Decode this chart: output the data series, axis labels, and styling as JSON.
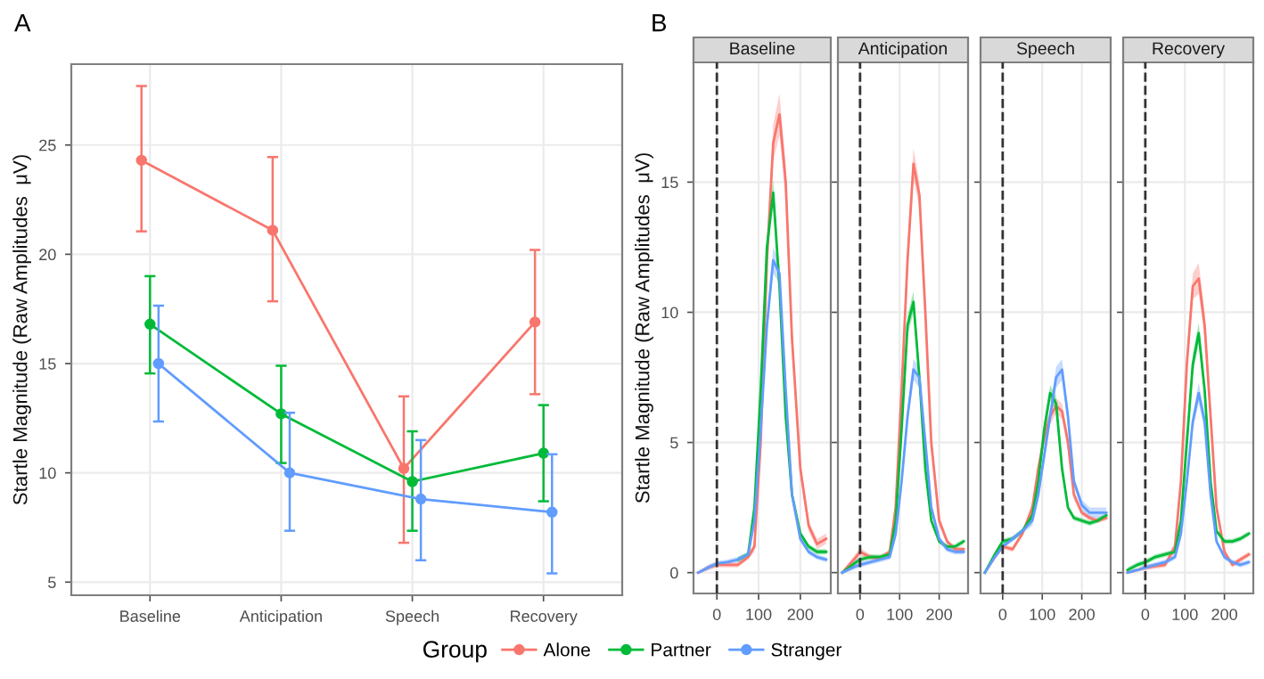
{
  "chart_data": [
    {
      "type": "line",
      "title": "A",
      "ylabel": "Startle Magnitude (Raw Amplitudes  μV)",
      "categories": [
        "Baseline",
        "Anticipation",
        "Speech",
        "Recovery"
      ],
      "ylim": [
        4.4,
        28.7
      ],
      "yticks": [
        5,
        10,
        15,
        20,
        25
      ],
      "grid": true,
      "marker": "circle",
      "legend": "bottom",
      "legend_title": "Group",
      "series": [
        {
          "name": "Alone",
          "color": "#f8766d",
          "values": [
            24.3,
            21.1,
            10.2,
            16.9
          ],
          "errors": [
            [
              21.05,
              27.7
            ],
            [
              17.85,
              24.45
            ],
            [
              6.8,
              13.5
            ],
            [
              13.6,
              20.2
            ]
          ]
        },
        {
          "name": "Partner",
          "color": "#00ba38",
          "values": [
            16.8,
            12.7,
            9.6,
            10.9
          ],
          "errors": [
            [
              14.55,
              19.0
            ],
            [
              10.45,
              14.9
            ],
            [
              7.35,
              11.9
            ],
            [
              8.7,
              13.1
            ]
          ]
        },
        {
          "name": "Stranger",
          "color": "#619cff",
          "values": [
            15.0,
            10.0,
            8.8,
            8.2
          ],
          "errors": [
            [
              12.35,
              17.65
            ],
            [
              7.35,
              12.75
            ],
            [
              6.0,
              11.5
            ],
            [
              5.4,
              10.85
            ]
          ]
        }
      ]
    },
    {
      "type": "line",
      "title": "Baseline",
      "annotations": [
        "B"
      ],
      "ylabel": "Startle Magnitude (Raw Amplitudes  μV)",
      "xlim": [
        -56,
        273
      ],
      "xticks": [
        0,
        100,
        200
      ],
      "ylim": [
        -0.8,
        19.6
      ],
      "yticks": [
        0,
        5,
        10,
        15
      ],
      "grid": true,
      "ref_lines": [
        {
          "axis": "x",
          "value": 0,
          "line_style": "dashed",
          "color": "#333333"
        }
      ],
      "series": [
        {
          "name": "Alone",
          "color": "#f8766d",
          "x": [
            -45,
            -20,
            0,
            25,
            50,
            75,
            90,
            105,
            120,
            135,
            150,
            165,
            180,
            200,
            220,
            240,
            262
          ],
          "values": [
            0,
            0.2,
            0.3,
            0.3,
            0.3,
            0.6,
            1.0,
            5,
            12,
            16.5,
            17.6,
            15,
            9,
            4,
            1.8,
            1.1,
            1.3
          ],
          "lower": [
            -0.05,
            0.1,
            0.2,
            0.2,
            0.2,
            0.5,
            0.8,
            4.6,
            11.4,
            15.8,
            16.8,
            14.3,
            8.5,
            3.7,
            1.6,
            0.9,
            1.1
          ],
          "upper": [
            0.05,
            0.3,
            0.4,
            0.4,
            0.4,
            0.7,
            1.2,
            5.4,
            12.6,
            17.2,
            18.4,
            15.7,
            9.5,
            4.3,
            2.0,
            1.3,
            1.5
          ]
        },
        {
          "name": "Partner",
          "color": "#00ba38",
          "x": [
            50,
            75,
            90,
            105,
            120,
            135,
            150,
            165,
            180,
            200,
            220,
            240,
            262
          ],
          "values": [
            0.5,
            0.7,
            2.5,
            7,
            12.5,
            14.6,
            11,
            6,
            3,
            1.5,
            1.0,
            0.8,
            0.8
          ],
          "lower": [
            0.4,
            0.6,
            2.3,
            6.7,
            12.1,
            14.1,
            10.6,
            5.7,
            2.8,
            1.4,
            0.9,
            0.7,
            0.7
          ],
          "upper": [
            0.6,
            0.8,
            2.7,
            7.3,
            12.9,
            15.1,
            11.4,
            6.3,
            3.2,
            1.6,
            1.1,
            0.9,
            0.9
          ]
        },
        {
          "name": "Stranger",
          "color": "#619cff",
          "x": [
            -45,
            -20,
            0,
            25,
            50,
            75,
            90,
            105,
            120,
            135,
            150,
            165,
            180,
            200,
            220,
            240,
            262
          ],
          "values": [
            0,
            0.2,
            0.35,
            0.4,
            0.5,
            0.7,
            2,
            5.5,
            9.5,
            12,
            11.5,
            7,
            3,
            1.3,
            0.8,
            0.6,
            0.5
          ],
          "lower": [
            -0.05,
            0.1,
            0.25,
            0.3,
            0.4,
            0.6,
            1.8,
            5.2,
            9.1,
            11.5,
            11.1,
            6.7,
            2.8,
            1.2,
            0.7,
            0.5,
            0.4
          ],
          "upper": [
            0.05,
            0.3,
            0.45,
            0.5,
            0.6,
            0.8,
            2.2,
            5.8,
            9.9,
            12.5,
            11.9,
            7.3,
            3.2,
            1.4,
            0.9,
            0.7,
            0.6
          ]
        }
      ]
    },
    {
      "type": "line",
      "title": "Anticipation",
      "xlim": [
        -56,
        273
      ],
      "xticks": [
        0,
        100,
        200
      ],
      "ylim": [
        -0.8,
        19.6
      ],
      "yticks": [
        0,
        5,
        10,
        15
      ],
      "grid": true,
      "tick_labels": "x",
      "ref_lines": [
        {
          "axis": "x",
          "value": 0,
          "line_style": "dashed",
          "color": "#333333"
        }
      ],
      "series": [
        {
          "name": "Alone",
          "color": "#f8766d",
          "x": [
            -45,
            -10,
            0,
            25,
            50,
            75,
            90,
            105,
            120,
            135,
            150,
            165,
            180,
            200,
            220,
            240,
            262
          ],
          "values": [
            0,
            0.6,
            0.8,
            0.6,
            0.55,
            0.8,
            2.5,
            7,
            12,
            15.7,
            14.5,
            10,
            5,
            2,
            1.2,
            0.9,
            0.9
          ],
          "lower": [
            -0.05,
            0.45,
            0.65,
            0.5,
            0.45,
            0.7,
            2.3,
            6.6,
            11.5,
            15.1,
            14.0,
            9.6,
            4.7,
            1.8,
            1.1,
            0.8,
            0.8
          ],
          "upper": [
            0.05,
            0.75,
            0.95,
            0.7,
            0.65,
            0.9,
            2.7,
            7.4,
            12.5,
            16.3,
            15.0,
            10.4,
            5.3,
            2.2,
            1.3,
            1.0,
            1.0
          ]
        },
        {
          "name": "Partner",
          "color": "#00ba38",
          "x": [
            -45,
            -10,
            0,
            25,
            50,
            75,
            90,
            105,
            120,
            135,
            150,
            165,
            180,
            200,
            220,
            240,
            262
          ],
          "values": [
            0,
            0.4,
            0.5,
            0.6,
            0.6,
            0.7,
            2,
            5.5,
            9.5,
            10.4,
            7.5,
            4,
            2,
            1.2,
            1.0,
            1.0,
            1.2
          ],
          "lower": [
            -0.05,
            0.3,
            0.4,
            0.5,
            0.5,
            0.6,
            1.8,
            5.2,
            9.1,
            10.0,
            7.2,
            3.8,
            1.9,
            1.1,
            0.9,
            0.9,
            1.1
          ],
          "upper": [
            0.05,
            0.5,
            0.6,
            0.7,
            0.7,
            0.8,
            2.2,
            5.8,
            9.9,
            10.8,
            7.8,
            4.2,
            2.1,
            1.3,
            1.1,
            1.1,
            1.3
          ]
        },
        {
          "name": "Stranger",
          "color": "#619cff",
          "x": [
            -45,
            -10,
            0,
            25,
            50,
            75,
            90,
            105,
            120,
            135,
            150,
            165,
            180,
            200,
            220,
            240,
            262
          ],
          "values": [
            0,
            0.25,
            0.3,
            0.4,
            0.5,
            0.6,
            1.5,
            3.5,
            6,
            7.8,
            7.5,
            5,
            2.5,
            1.3,
            0.9,
            0.8,
            0.8
          ],
          "lower": [
            -0.05,
            0.15,
            0.2,
            0.3,
            0.4,
            0.5,
            1.3,
            3.2,
            5.7,
            7.4,
            7.1,
            4.7,
            2.3,
            1.2,
            0.8,
            0.7,
            0.7
          ],
          "upper": [
            0.05,
            0.35,
            0.4,
            0.5,
            0.6,
            0.7,
            1.7,
            3.8,
            6.3,
            8.2,
            7.9,
            5.3,
            2.7,
            1.4,
            1.0,
            0.9,
            0.9
          ]
        }
      ]
    },
    {
      "type": "line",
      "title": "Speech",
      "xlim": [
        -56,
        273
      ],
      "xticks": [
        0,
        100,
        200
      ],
      "ylim": [
        -0.8,
        19.6
      ],
      "yticks": [
        0,
        5,
        10,
        15
      ],
      "grid": true,
      "tick_labels": "x",
      "ref_lines": [
        {
          "axis": "x",
          "value": 0,
          "line_style": "dashed",
          "color": "#333333"
        }
      ],
      "series": [
        {
          "name": "Alone",
          "color": "#f8766d",
          "x": [
            -45,
            -20,
            0,
            25,
            50,
            75,
            90,
            105,
            120,
            135,
            150,
            165,
            180,
            200,
            220,
            240,
            262
          ],
          "values": [
            0,
            0.6,
            1.0,
            0.9,
            1.5,
            2.5,
            4,
            5.2,
            6.0,
            6.4,
            6.2,
            5.0,
            3.0,
            2.3,
            2.1,
            2.0,
            2.1
          ],
          "lower": [
            -0.05,
            0.5,
            0.9,
            0.8,
            1.4,
            2.3,
            3.8,
            4.9,
            5.7,
            6.1,
            5.9,
            4.7,
            2.8,
            2.2,
            2.0,
            1.9,
            2.0
          ],
          "upper": [
            0.05,
            0.7,
            1.1,
            1.0,
            1.6,
            2.7,
            4.2,
            5.5,
            6.3,
            6.7,
            6.5,
            5.3,
            3.2,
            2.4,
            2.2,
            2.1,
            2.2
          ]
        },
        {
          "name": "Partner",
          "color": "#00ba38",
          "x": [
            -45,
            -20,
            0,
            25,
            50,
            75,
            90,
            105,
            120,
            135,
            150,
            165,
            180,
            200,
            220,
            240,
            262
          ],
          "values": [
            0,
            0.7,
            1.2,
            1.3,
            1.6,
            2.2,
            3.5,
            5.5,
            6.9,
            6.5,
            4.0,
            2.5,
            2.1,
            2.0,
            1.9,
            2.0,
            2.2
          ],
          "lower": [
            -0.05,
            0.6,
            1.1,
            1.2,
            1.5,
            2.0,
            3.3,
            5.2,
            6.6,
            6.2,
            3.8,
            2.4,
            2.0,
            1.9,
            1.8,
            1.9,
            2.1
          ],
          "upper": [
            0.05,
            0.8,
            1.3,
            1.4,
            1.7,
            2.4,
            3.7,
            5.8,
            7.2,
            6.8,
            4.2,
            2.6,
            2.2,
            2.1,
            2.0,
            2.1,
            2.3
          ]
        },
        {
          "name": "Stranger",
          "color": "#619cff",
          "x": [
            -45,
            -20,
            0,
            25,
            50,
            75,
            90,
            105,
            120,
            135,
            150,
            165,
            180,
            200,
            220,
            240,
            262
          ],
          "values": [
            0,
            0.6,
            1.0,
            1.3,
            1.6,
            2.0,
            3.0,
            4.5,
            6.0,
            7.5,
            7.8,
            6.0,
            3.5,
            2.6,
            2.3,
            2.3,
            2.3
          ],
          "lower": [
            -0.05,
            0.5,
            0.9,
            1.2,
            1.5,
            1.8,
            2.8,
            4.2,
            5.7,
            7.1,
            7.4,
            5.7,
            3.3,
            2.4,
            2.1,
            2.1,
            2.1
          ],
          "upper": [
            0.05,
            0.7,
            1.1,
            1.4,
            1.7,
            2.2,
            3.2,
            4.8,
            6.3,
            7.9,
            8.2,
            6.3,
            3.7,
            2.8,
            2.5,
            2.5,
            2.5
          ]
        }
      ]
    },
    {
      "type": "line",
      "title": "Recovery",
      "xlim": [
        -56,
        273
      ],
      "xticks": [
        0,
        100,
        200
      ],
      "ylim": [
        -0.8,
        19.6
      ],
      "yticks": [
        0,
        5,
        10,
        15
      ],
      "grid": true,
      "tick_labels": "x",
      "ref_lines": [
        {
          "axis": "x",
          "value": 0,
          "line_style": "dashed",
          "color": "#333333"
        }
      ],
      "series": [
        {
          "name": "Alone",
          "color": "#f8766d",
          "x": [
            -45,
            -20,
            0,
            25,
            50,
            75,
            90,
            105,
            120,
            135,
            150,
            165,
            180,
            200,
            220,
            240,
            262
          ],
          "values": [
            0,
            0.1,
            0.2,
            0.25,
            0.3,
            1.0,
            3.5,
            8,
            11,
            11.3,
            9.5,
            6,
            2.5,
            0.8,
            0.3,
            0.5,
            0.7
          ],
          "lower": [
            -0.05,
            0.05,
            0.1,
            0.15,
            0.2,
            0.8,
            3.2,
            7.6,
            10.5,
            10.7,
            9.0,
            5.6,
            2.3,
            0.7,
            0.2,
            0.4,
            0.6
          ],
          "upper": [
            0.05,
            0.15,
            0.3,
            0.35,
            0.4,
            1.2,
            3.8,
            8.4,
            11.5,
            11.9,
            10.0,
            6.4,
            2.7,
            0.9,
            0.4,
            0.6,
            0.8
          ]
        },
        {
          "name": "Partner",
          "color": "#00ba38",
          "x": [
            -45,
            -20,
            0,
            25,
            50,
            75,
            90,
            105,
            120,
            135,
            150,
            165,
            180,
            200,
            220,
            240,
            262
          ],
          "values": [
            0.1,
            0.3,
            0.4,
            0.6,
            0.7,
            0.8,
            2,
            5,
            8,
            9.2,
            7,
            3.5,
            1.6,
            1.2,
            1.2,
            1.3,
            1.5
          ],
          "lower": [
            0.0,
            0.2,
            0.3,
            0.5,
            0.6,
            0.7,
            1.8,
            4.7,
            7.6,
            8.8,
            6.7,
            3.3,
            1.5,
            1.1,
            1.1,
            1.2,
            1.4
          ],
          "upper": [
            0.2,
            0.4,
            0.5,
            0.7,
            0.8,
            0.9,
            2.2,
            5.3,
            8.4,
            9.6,
            7.3,
            3.7,
            1.7,
            1.3,
            1.3,
            1.4,
            1.6
          ]
        },
        {
          "name": "Stranger",
          "color": "#619cff",
          "x": [
            -45,
            -20,
            0,
            25,
            50,
            75,
            90,
            105,
            120,
            135,
            150,
            165,
            180,
            200,
            220,
            240,
            262
          ],
          "values": [
            0,
            0.1,
            0.2,
            0.3,
            0.4,
            0.6,
            1.5,
            3.5,
            5.8,
            6.9,
            5.8,
            3,
            1.2,
            0.6,
            0.4,
            0.3,
            0.4
          ],
          "lower": [
            -0.05,
            0.05,
            0.1,
            0.2,
            0.3,
            0.5,
            1.3,
            3.2,
            5.5,
            6.5,
            5.5,
            2.8,
            1.1,
            0.5,
            0.3,
            0.2,
            0.3
          ],
          "upper": [
            0.05,
            0.15,
            0.3,
            0.4,
            0.5,
            0.7,
            1.7,
            3.8,
            6.1,
            7.3,
            6.1,
            3.2,
            1.3,
            0.7,
            0.5,
            0.4,
            0.5
          ]
        }
      ]
    }
  ]
}
